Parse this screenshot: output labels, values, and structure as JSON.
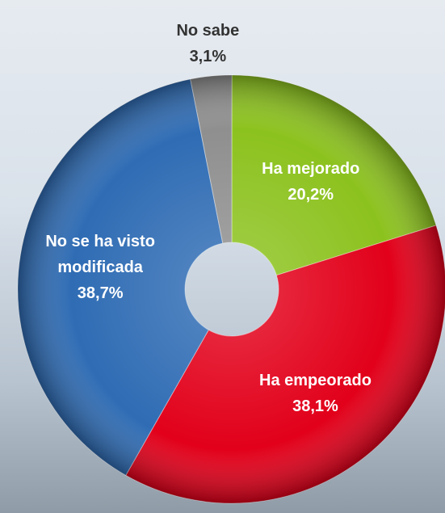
{
  "chart_data": {
    "type": "donut",
    "categories": [
      "Ha mejorado",
      "Ha empeorado",
      "No se ha visto modificada",
      "No sabe"
    ],
    "values": [
      20.2,
      38.1,
      38.7,
      3.1
    ],
    "value_labels": [
      "20,2%",
      "38,1%",
      "38,7%",
      "3,1%"
    ],
    "colors": [
      "#8cc21e",
      "#e2001a",
      "#2f6cb4",
      "#8f8f8f"
    ]
  }
}
